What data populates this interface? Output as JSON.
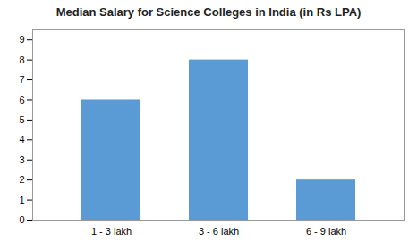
{
  "chart_data": {
    "type": "bar",
    "title": "Median Salary for Science Colleges in India (in Rs LPA)",
    "categories": [
      "1 - 3 lakh",
      "3 - 6 lakh",
      "6 - 9 lakh"
    ],
    "values": [
      6,
      8,
      2
    ],
    "color": "#5B9BD5",
    "ylim": [
      0,
      9.5
    ],
    "yticks": [
      0,
      1,
      2,
      3,
      4,
      5,
      6,
      7,
      8,
      9
    ],
    "grid": false
  }
}
